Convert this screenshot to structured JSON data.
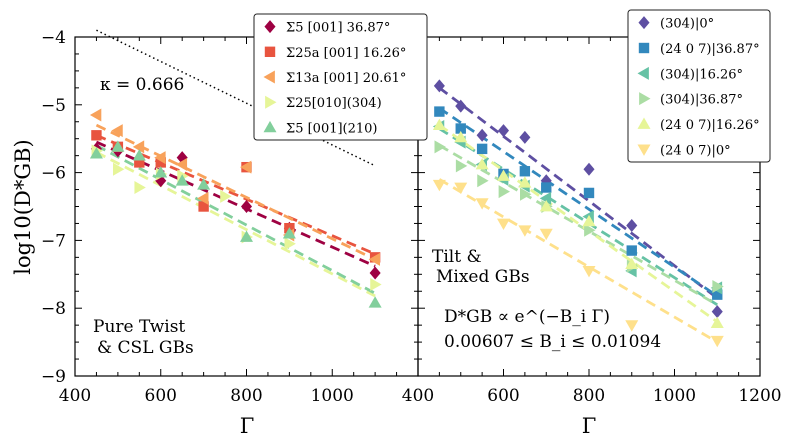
{
  "chart_data": [
    {
      "id": "left",
      "type": "scatter",
      "xlabel": "Γ",
      "ylabel": "log10(D*GB)",
      "xlim": [
        400,
        1200
      ],
      "ylim": [
        -9,
        -4
      ],
      "xticks": [
        400,
        600,
        800,
        1000
      ],
      "yticks": [
        -9,
        -8,
        -7,
        -6,
        -5,
        -4
      ],
      "annotations": {
        "kappa": "κ = 0.666",
        "label_line1": "Pure Twist",
        "label_line2": "& CSL GBs"
      },
      "reference_line": {
        "x": [
          450,
          1100
        ],
        "y": [
          -3.9,
          -5.9
        ]
      },
      "series": [
        {
          "name": "Σ5 [001] 36.87°",
          "marker": "diamond",
          "color": "#9e0142",
          "x": [
            450,
            500,
            600,
            650,
            800,
            900,
            1100
          ],
          "y": [
            -5.65,
            -5.68,
            -6.12,
            -5.78,
            -6.5,
            -6.82,
            -7.48
          ],
          "fit": [
            [
              450,
              -5.55
            ],
            [
              1100,
              -7.38
            ]
          ]
        },
        {
          "name": "Σ25a [001] 16.26°",
          "marker": "square",
          "color": "#e8543f",
          "x": [
            450,
            500,
            550,
            600,
            700,
            800,
            900,
            1100
          ],
          "y": [
            -5.45,
            -5.62,
            -5.85,
            -5.85,
            -6.5,
            -5.92,
            -6.82,
            -7.25
          ],
          "fit": [
            [
              450,
              -5.45
            ],
            [
              1100,
              -7.2
            ]
          ]
        },
        {
          "name": "Σ13a [001] 20.61°",
          "marker": "triangle-left",
          "color": "#f8a25b",
          "x": [
            450,
            500,
            550,
            600,
            650,
            700,
            800,
            900,
            1100
          ],
          "y": [
            -5.15,
            -5.38,
            -5.62,
            -5.78,
            -5.88,
            -6.38,
            -5.92,
            -6.92,
            -7.28
          ],
          "fit": [
            [
              450,
              -5.3
            ],
            [
              1100,
              -7.28
            ]
          ]
        },
        {
          "name": "Σ25[010](304)",
          "marker": "triangle-right",
          "color": "#e6f598",
          "x": [
            450,
            500,
            550,
            600,
            650,
            750,
            800,
            900,
            1100
          ],
          "y": [
            -5.68,
            -5.95,
            -6.22,
            -6.02,
            -6.05,
            -6.35,
            -6.95,
            -7.05,
            -7.65
          ],
          "fit": [
            [
              450,
              -5.7
            ],
            [
              1100,
              -7.82
            ]
          ]
        },
        {
          "name": "Σ5 [001](210)",
          "marker": "triangle-up",
          "color": "#82cf9c",
          "x": [
            450,
            500,
            550,
            600,
            650,
            700,
            800,
            900,
            1100
          ],
          "y": [
            -5.72,
            -5.62,
            -5.75,
            -6.0,
            -6.12,
            -6.18,
            -6.95,
            -6.9,
            -7.92
          ],
          "fit": [
            [
              450,
              -5.6
            ],
            [
              1100,
              -7.78
            ]
          ]
        }
      ]
    },
    {
      "id": "right",
      "type": "scatter",
      "xlabel": "Γ",
      "xlim": [
        400,
        1200
      ],
      "ylim": [
        -9,
        -4
      ],
      "xticks": [
        400,
        600,
        800,
        1000,
        1200
      ],
      "annotations": {
        "label_line1": "Tilt &",
        "label_line2": "Mixed GBs",
        "formula": "D*GB ∝ e^(−B_i Γ)",
        "range": "0.00607 ≤ B_i ≤ 0.01094"
      },
      "series": [
        {
          "name": "(304)|0°",
          "marker": "diamond",
          "color": "#5e4fa2",
          "x": [
            450,
            500,
            550,
            600,
            650,
            700,
            800,
            900,
            1100
          ],
          "y": [
            -4.72,
            -5.02,
            -5.45,
            -5.38,
            -5.48,
            -6.12,
            -5.95,
            -6.78,
            -8.05
          ],
          "fit": [
            [
              450,
              -4.75
            ],
            [
              1100,
              -7.85
            ]
          ]
        },
        {
          "name": "(24 0 7)|36.87°",
          "marker": "square",
          "color": "#3288bd",
          "x": [
            450,
            500,
            550,
            600,
            650,
            700,
            800,
            900,
            1100
          ],
          "y": [
            -5.1,
            -5.35,
            -5.65,
            -6.02,
            -5.98,
            -6.22,
            -6.3,
            -7.15,
            -7.8
          ],
          "fit": [
            [
              450,
              -5.05
            ],
            [
              1100,
              -7.82
            ]
          ]
        },
        {
          "name": "(304)|16.26°",
          "marker": "triangle-left",
          "color": "#66c2a5",
          "x": [
            450,
            500,
            550,
            600,
            650,
            700,
            800,
            900,
            1100
          ],
          "y": [
            -5.32,
            -5.55,
            -5.88,
            -6.1,
            -6.2,
            -6.38,
            -6.65,
            -7.45,
            -7.7
          ],
          "fit": [
            [
              450,
              -5.35
            ],
            [
              1100,
              -7.95
            ]
          ]
        },
        {
          "name": "(304)|36.87°",
          "marker": "triangle-right",
          "color": "#abdda4",
          "x": [
            450,
            500,
            550,
            600,
            650,
            700,
            800,
            900,
            1100
          ],
          "y": [
            -5.62,
            -5.9,
            -6.12,
            -6.28,
            -6.32,
            -6.5,
            -6.85,
            -7.38,
            -7.68
          ],
          "fit": [
            [
              450,
              -5.6
            ],
            [
              1100,
              -7.95
            ]
          ]
        },
        {
          "name": "(24 0 7)|16.26°",
          "marker": "triangle-up",
          "color": "#e6f598",
          "x": [
            450,
            500,
            550,
            600,
            650,
            700,
            800,
            900,
            1100
          ],
          "y": [
            -5.3,
            -5.48,
            -5.88,
            -6.05,
            -6.15,
            -6.5,
            -6.72,
            -7.35,
            -8.22
          ],
          "fit": [
            [
              450,
              -5.3
            ],
            [
              1100,
              -8.2
            ]
          ]
        },
        {
          "name": "(24 0 7)|0°",
          "marker": "triangle-down",
          "color": "#fee08b",
          "x": [
            450,
            500,
            550,
            600,
            650,
            700,
            800,
            900,
            1100
          ],
          "y": [
            -6.18,
            -6.22,
            -6.45,
            -6.75,
            -6.85,
            -6.9,
            -7.45,
            -8.25,
            -8.48
          ],
          "fit": [
            [
              450,
              -6.1
            ],
            [
              1100,
              -8.5
            ]
          ]
        }
      ]
    }
  ]
}
